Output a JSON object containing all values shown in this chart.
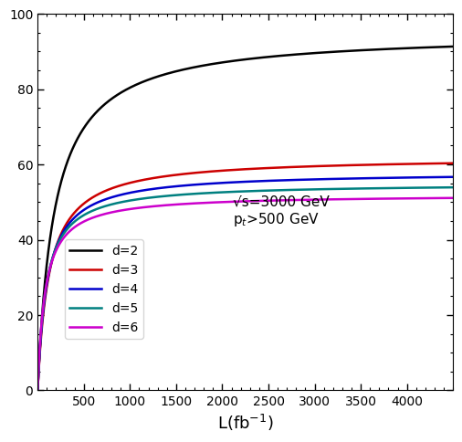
{
  "xlabel": "L(fb$^{-1}$)",
  "annotation_line1": "\\u221as=3000 GeV",
  "annotation_line2": "p_t>500 GeV",
  "xlim": [
    0,
    4500
  ],
  "ylim": [
    0,
    100
  ],
  "xticks": [
    500,
    1000,
    1500,
    2000,
    2500,
    3000,
    3500,
    4000
  ],
  "yticks": [
    0,
    20,
    40,
    60,
    80,
    100
  ],
  "series": [
    {
      "label": "d=2",
      "color": "#000000",
      "amplitude": 95.0,
      "rate": 0.0055
    },
    {
      "label": "d=3",
      "color": "#cc0000",
      "amplitude": 62.0,
      "rate": 0.008
    },
    {
      "label": "d=4",
      "color": "#0000cc",
      "amplitude": 58.0,
      "rate": 0.0095
    },
    {
      "label": "d=5",
      "color": "#008080",
      "amplitude": 55.0,
      "rate": 0.011
    },
    {
      "label": "d=6",
      "color": "#cc00cc",
      "amplitude": 52.0,
      "rate": 0.0125
    }
  ],
  "background_color": "#ffffff",
  "linewidth": 1.8
}
